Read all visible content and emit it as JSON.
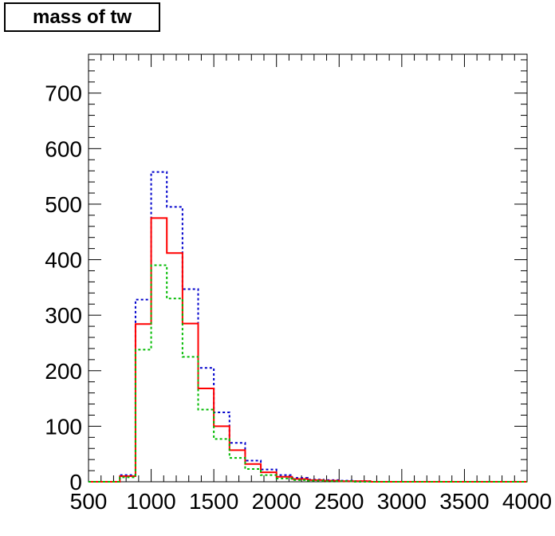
{
  "chart_data": {
    "type": "histogram",
    "title": "mass of tw",
    "xlabel": "",
    "ylabel": "",
    "xlim": [
      500,
      4000
    ],
    "ylim": [
      0,
      770
    ],
    "x_ticks": [
      500,
      1000,
      1500,
      2000,
      2500,
      3000,
      3500,
      4000
    ],
    "y_ticks": [
      0,
      100,
      200,
      300,
      400,
      500,
      600,
      700
    ],
    "bin_edges": [
      500,
      625,
      750,
      875,
      1000,
      1125,
      1250,
      1375,
      1500,
      1625,
      1750,
      1875,
      2000,
      2125,
      2250,
      2375,
      2500,
      2625,
      2750,
      2875,
      3000,
      3125,
      3250,
      3375,
      3500,
      3625,
      3750,
      3875,
      4000
    ],
    "grid": false,
    "legend": "none",
    "series": [
      {
        "color": "#0000cc",
        "style": "dotted",
        "values": [
          0,
          0,
          12,
          328,
          558,
          495,
          347,
          205,
          125,
          70,
          38,
          22,
          12,
          7,
          4,
          3,
          2,
          1,
          0,
          0,
          0,
          0,
          0,
          0,
          0,
          0,
          0,
          0
        ]
      },
      {
        "color": "#ff0000",
        "style": "solid",
        "values": [
          0,
          0,
          10,
          284,
          475,
          412,
          285,
          168,
          100,
          57,
          32,
          17,
          9,
          5,
          3,
          2,
          1,
          1,
          0,
          0,
          0,
          0,
          0,
          0,
          0,
          0,
          0,
          0
        ]
      },
      {
        "color": "#00bb00",
        "style": "dotted",
        "values": [
          0,
          0,
          8,
          238,
          390,
          330,
          225,
          130,
          77,
          43,
          23,
          12,
          6,
          3,
          2,
          1,
          1,
          0,
          0,
          0,
          0,
          0,
          0,
          0,
          0,
          0,
          0,
          0
        ]
      }
    ]
  }
}
